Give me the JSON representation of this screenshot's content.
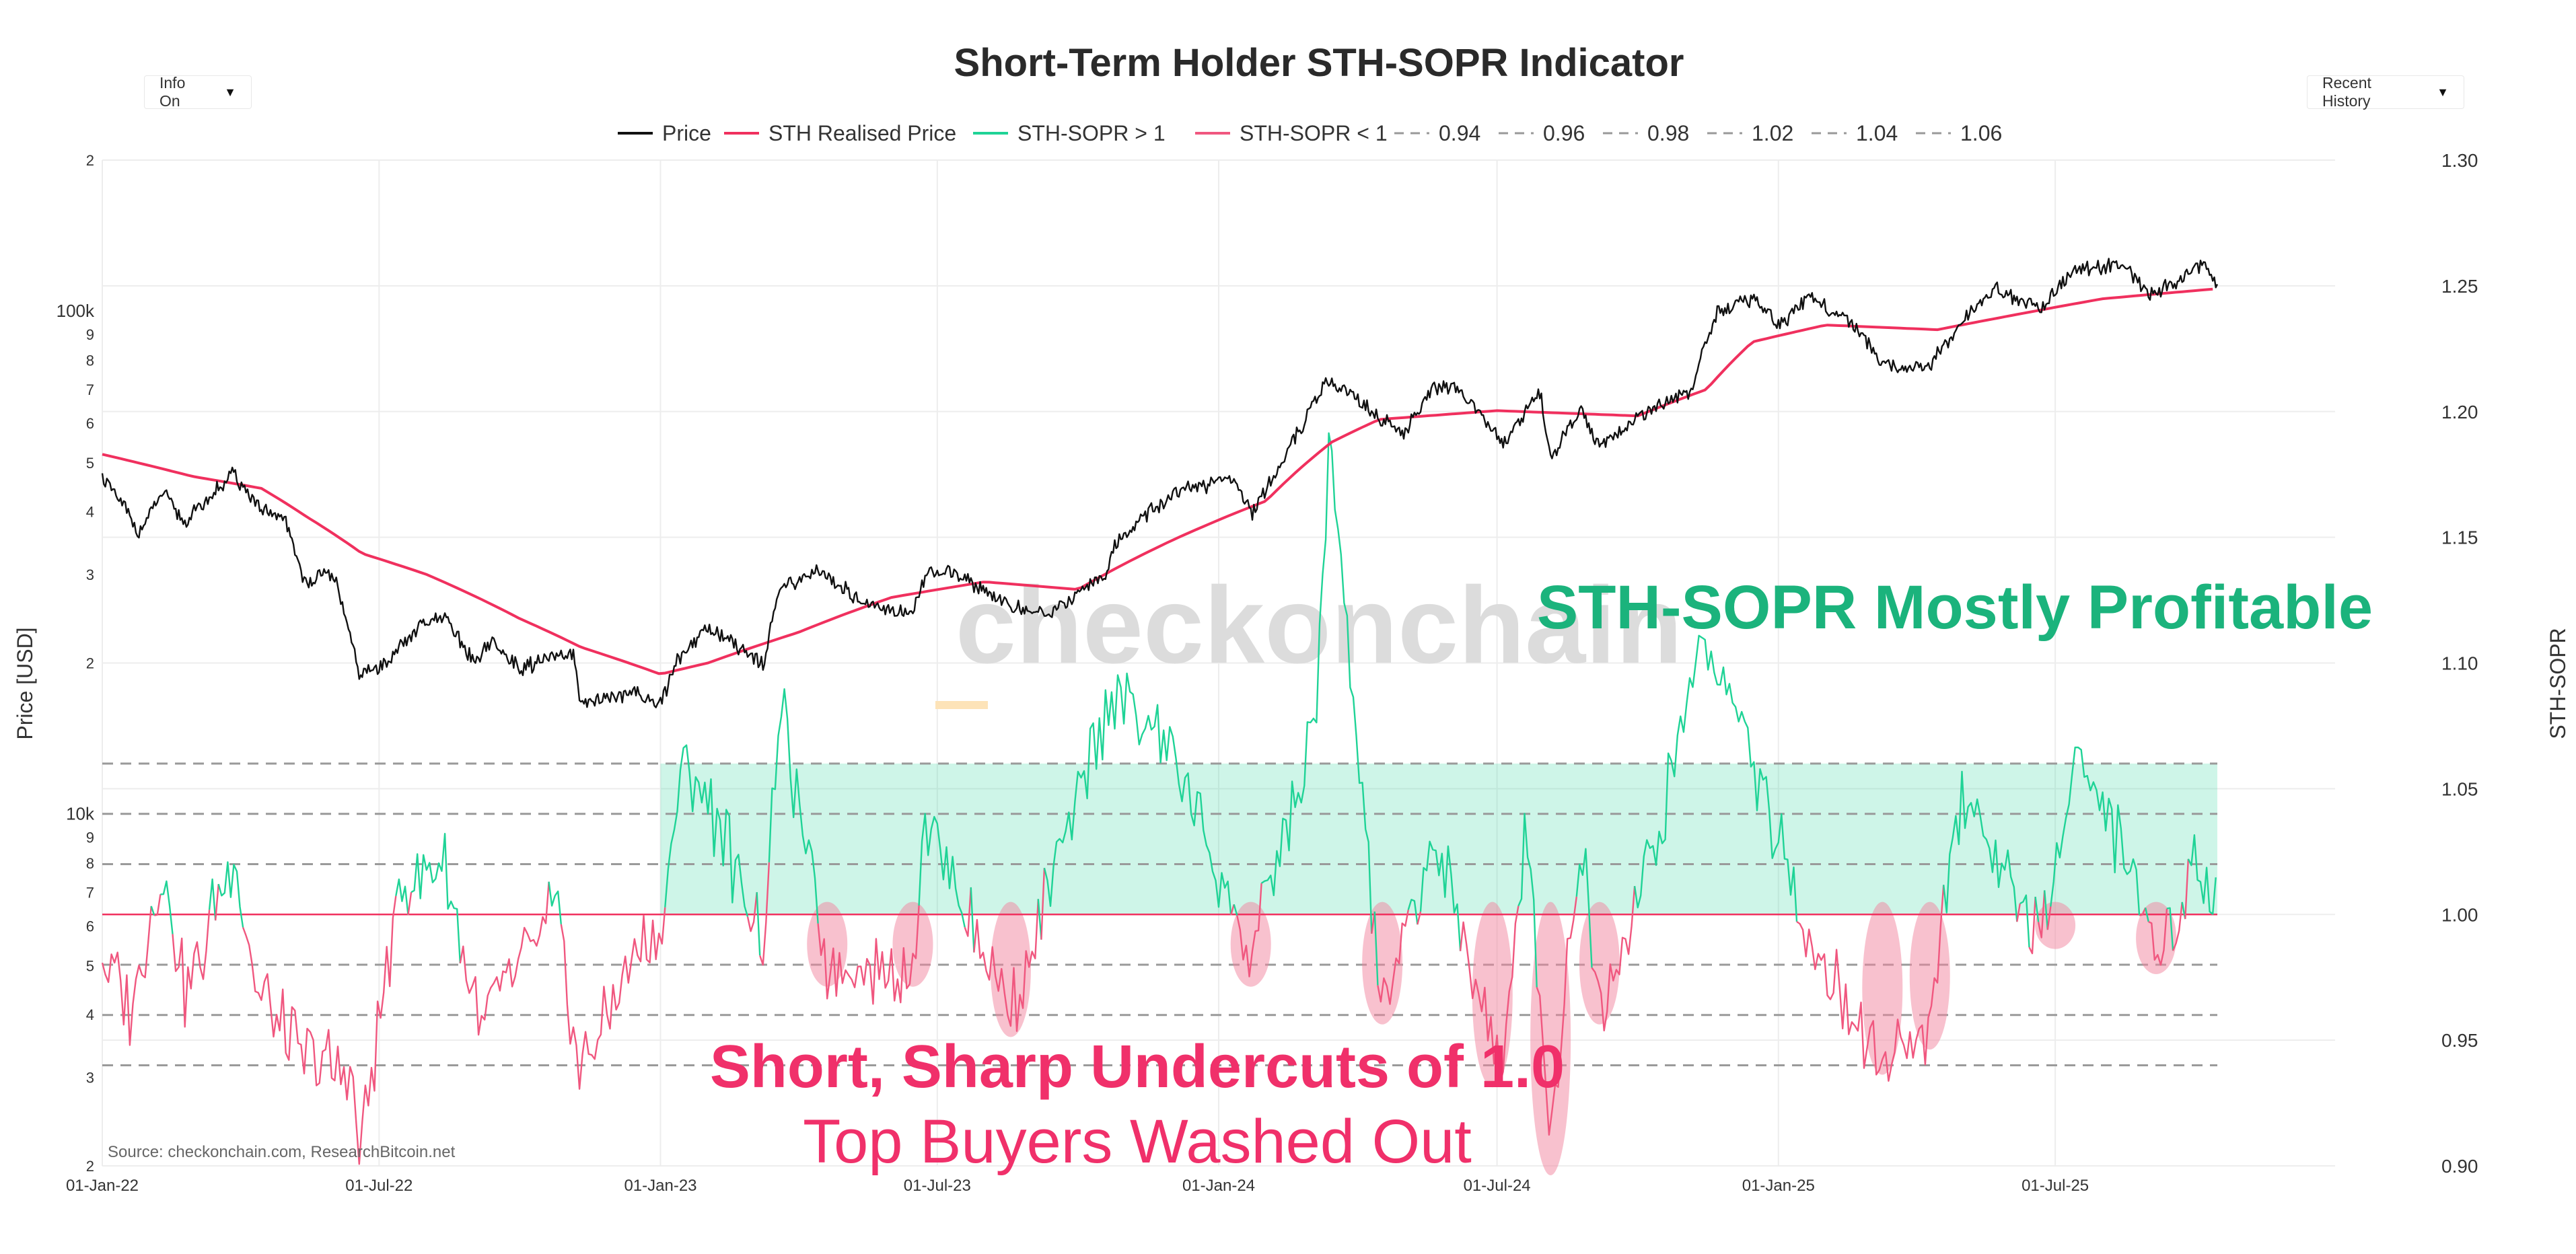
{
  "chart_data": {
    "type": "line",
    "title": "Short-Term Holder STH-SOPR Indicator",
    "controls": {
      "left_dropdown": "Info On",
      "right_dropdown": "Recent History"
    },
    "legend": [
      {
        "label": "Price",
        "color": "#111111",
        "style": "solid"
      },
      {
        "label": "STH Realised Price",
        "color": "#f0305e",
        "style": "solid"
      },
      {
        "label": "STH-SOPR > 1",
        "color": "#1fd396",
        "style": "solid"
      },
      {
        "label": "STH-SOPR < 1",
        "color": "#f0577f",
        "style": "solid"
      },
      {
        "label": "0.94",
        "color": "#999999",
        "style": "dashed"
      },
      {
        "label": "0.96",
        "color": "#999999",
        "style": "dashed"
      },
      {
        "label": "0.98",
        "color": "#999999",
        "style": "dashed"
      },
      {
        "label": "1.02",
        "color": "#999999",
        "style": "dashed"
      },
      {
        "label": "1.04",
        "color": "#999999",
        "style": "dashed"
      },
      {
        "label": "1.06",
        "color": "#999999",
        "style": "dashed"
      }
    ],
    "x_axis": {
      "ticks": [
        "01-Jan-22",
        "01-Jul-22",
        "01-Jan-23",
        "01-Jul-23",
        "01-Jan-24",
        "01-Jul-24",
        "01-Jan-25",
        "01-Jul-25"
      ],
      "range": [
        "2022-01-01",
        "2025-12-31"
      ]
    },
    "y_left": {
      "label": "Price [USD]",
      "scale": "log",
      "range": [
        2000,
        200000
      ],
      "ticks": [
        {
          "v": 2000,
          "t": "2"
        },
        {
          "v": 3000,
          "t": "3"
        },
        {
          "v": 4000,
          "t": "4"
        },
        {
          "v": 5000,
          "t": "5"
        },
        {
          "v": 6000,
          "t": "6"
        },
        {
          "v": 7000,
          "t": "7"
        },
        {
          "v": 8000,
          "t": "8"
        },
        {
          "v": 9000,
          "t": "9"
        },
        {
          "v": 10000,
          "t": "10k"
        },
        {
          "v": 20000,
          "t": "2"
        },
        {
          "v": 30000,
          "t": "3"
        },
        {
          "v": 40000,
          "t": "4"
        },
        {
          "v": 50000,
          "t": "5"
        },
        {
          "v": 60000,
          "t": "6"
        },
        {
          "v": 70000,
          "t": "7"
        },
        {
          "v": 80000,
          "t": "8"
        },
        {
          "v": 90000,
          "t": "9"
        },
        {
          "v": 100000,
          "t": "100k"
        },
        {
          "v": 200000,
          "t": "2"
        }
      ]
    },
    "y_right": {
      "label": "STH-SOPR",
      "range": [
        0.9,
        1.3
      ],
      "ticks": [
        "0.90",
        "0.95",
        "1.00",
        "1.05",
        "1.10",
        "1.15",
        "1.20",
        "1.25",
        "1.30"
      ]
    },
    "reference_lines": [
      0.94,
      0.96,
      0.98,
      1.02,
      1.04,
      1.06
    ],
    "shaded_band": {
      "from": 1.0,
      "to": 1.06,
      "start": "2023-01-01",
      "end": "2025-10-15",
      "color": "#1fd396"
    },
    "price_series": [
      {
        "d": "2022-01-01",
        "v": 47000
      },
      {
        "d": "2022-01-25",
        "v": 36500
      },
      {
        "d": "2022-02-10",
        "v": 43500
      },
      {
        "d": "2022-02-24",
        "v": 38000
      },
      {
        "d": "2022-03-28",
        "v": 47500
      },
      {
        "d": "2022-04-15",
        "v": 40000
      },
      {
        "d": "2022-05-01",
        "v": 38500
      },
      {
        "d": "2022-05-12",
        "v": 29000
      },
      {
        "d": "2022-06-01",
        "v": 30000
      },
      {
        "d": "2022-06-13",
        "v": 22000
      },
      {
        "d": "2022-06-18",
        "v": 19000
      },
      {
        "d": "2022-07-01",
        "v": 19500
      },
      {
        "d": "2022-07-30",
        "v": 24000
      },
      {
        "d": "2022-08-14",
        "v": 24400
      },
      {
        "d": "2022-09-01",
        "v": 20000
      },
      {
        "d": "2022-09-12",
        "v": 22000
      },
      {
        "d": "2022-10-01",
        "v": 19500
      },
      {
        "d": "2022-11-05",
        "v": 21000
      },
      {
        "d": "2022-11-09",
        "v": 16500
      },
      {
        "d": "2022-12-15",
        "v": 17500
      },
      {
        "d": "2023-01-01",
        "v": 16600
      },
      {
        "d": "2023-01-15",
        "v": 21000
      },
      {
        "d": "2023-02-01",
        "v": 23500
      },
      {
        "d": "2023-03-10",
        "v": 20000
      },
      {
        "d": "2023-03-20",
        "v": 28000
      },
      {
        "d": "2023-04-14",
        "v": 30500
      },
      {
        "d": "2023-05-12",
        "v": 26500
      },
      {
        "d": "2023-06-15",
        "v": 25000
      },
      {
        "d": "2023-06-25",
        "v": 30500
      },
      {
        "d": "2023-07-15",
        "v": 30000
      },
      {
        "d": "2023-08-17",
        "v": 26000
      },
      {
        "d": "2023-09-11",
        "v": 25000
      },
      {
        "d": "2023-10-20",
        "v": 30000
      },
      {
        "d": "2023-10-25",
        "v": 34500
      },
      {
        "d": "2023-12-05",
        "v": 44000
      },
      {
        "d": "2024-01-11",
        "v": 46500
      },
      {
        "d": "2024-01-23",
        "v": 39500
      },
      {
        "d": "2024-02-15",
        "v": 52000
      },
      {
        "d": "2024-03-13",
        "v": 73000
      },
      {
        "d": "2024-04-17",
        "v": 61000
      },
      {
        "d": "2024-05-01",
        "v": 57000
      },
      {
        "d": "2024-05-21",
        "v": 71000
      },
      {
        "d": "2024-06-07",
        "v": 70000
      },
      {
        "d": "2024-07-05",
        "v": 54000
      },
      {
        "d": "2024-07-29",
        "v": 69000
      },
      {
        "d": "2024-08-05",
        "v": 51000
      },
      {
        "d": "2024-08-25",
        "v": 64000
      },
      {
        "d": "2024-09-06",
        "v": 53500
      },
      {
        "d": "2024-10-15",
        "v": 66000
      },
      {
        "d": "2024-11-05",
        "v": 69000
      },
      {
        "d": "2024-11-22",
        "v": 99000
      },
      {
        "d": "2024-12-17",
        "v": 106000
      },
      {
        "d": "2025-01-02",
        "v": 94000
      },
      {
        "d": "2025-01-20",
        "v": 106000
      },
      {
        "d": "2025-02-15",
        "v": 97000
      },
      {
        "d": "2025-03-10",
        "v": 79000
      },
      {
        "d": "2025-04-08",
        "v": 76500
      },
      {
        "d": "2025-05-01",
        "v": 95000
      },
      {
        "d": "2025-05-22",
        "v": 111000
      },
      {
        "d": "2025-06-22",
        "v": 101000
      },
      {
        "d": "2025-07-14",
        "v": 122000
      },
      {
        "d": "2025-08-14",
        "v": 123500
      },
      {
        "d": "2025-09-01",
        "v": 108000
      },
      {
        "d": "2025-09-20",
        "v": 116000
      },
      {
        "d": "2025-10-06",
        "v": 125000
      },
      {
        "d": "2025-10-15",
        "v": 113000
      }
    ],
    "realised_price_series": [
      {
        "d": "2022-01-01",
        "v": 52000
      },
      {
        "d": "2022-03-01",
        "v": 47000
      },
      {
        "d": "2022-04-15",
        "v": 44500
      },
      {
        "d": "2022-05-15",
        "v": 39000
      },
      {
        "d": "2022-06-20",
        "v": 33000
      },
      {
        "d": "2022-08-01",
        "v": 30000
      },
      {
        "d": "2022-10-01",
        "v": 24500
      },
      {
        "d": "2022-11-10",
        "v": 21500
      },
      {
        "d": "2023-01-01",
        "v": 19000
      },
      {
        "d": "2023-02-01",
        "v": 20000
      },
      {
        "d": "2023-04-01",
        "v": 23000
      },
      {
        "d": "2023-06-01",
        "v": 27000
      },
      {
        "d": "2023-08-01",
        "v": 29000
      },
      {
        "d": "2023-10-01",
        "v": 28000
      },
      {
        "d": "2023-12-01",
        "v": 35000
      },
      {
        "d": "2024-02-01",
        "v": 42000
      },
      {
        "d": "2024-03-15",
        "v": 55000
      },
      {
        "d": "2024-04-15",
        "v": 61000
      },
      {
        "d": "2024-07-01",
        "v": 63500
      },
      {
        "d": "2024-10-01",
        "v": 62000
      },
      {
        "d": "2024-11-15",
        "v": 70000
      },
      {
        "d": "2024-12-15",
        "v": 87000
      },
      {
        "d": "2025-02-01",
        "v": 94000
      },
      {
        "d": "2025-04-15",
        "v": 92000
      },
      {
        "d": "2025-06-01",
        "v": 98000
      },
      {
        "d": "2025-08-01",
        "v": 106000
      },
      {
        "d": "2025-10-15",
        "v": 111000
      }
    ],
    "sopr_series": [
      {
        "d": "2022-01-01",
        "v": 0.983
      },
      {
        "d": "2022-01-20",
        "v": 0.962
      },
      {
        "d": "2022-02-08",
        "v": 1.018
      },
      {
        "d": "2022-02-25",
        "v": 0.968
      },
      {
        "d": "2022-03-28",
        "v": 1.025
      },
      {
        "d": "2022-04-12",
        "v": 0.972
      },
      {
        "d": "2022-05-10",
        "v": 0.945
      },
      {
        "d": "2022-06-13",
        "v": 0.935
      },
      {
        "d": "2022-06-18",
        "v": 0.905
      },
      {
        "d": "2022-07-15",
        "v": 1.012
      },
      {
        "d": "2022-08-14",
        "v": 1.018
      },
      {
        "d": "2022-09-06",
        "v": 0.955
      },
      {
        "d": "2022-10-25",
        "v": 1.004
      },
      {
        "d": "2022-11-09",
        "v": 0.935
      },
      {
        "d": "2022-12-15",
        "v": 0.985
      },
      {
        "d": "2023-01-01",
        "v": 0.99
      },
      {
        "d": "2023-01-15",
        "v": 1.062
      },
      {
        "d": "2023-02-01",
        "v": 1.045
      },
      {
        "d": "2023-03-10",
        "v": 0.99
      },
      {
        "d": "2023-03-20",
        "v": 1.082
      },
      {
        "d": "2023-04-20",
        "v": 0.98
      },
      {
        "d": "2023-06-15",
        "v": 0.978
      },
      {
        "d": "2023-06-22",
        "v": 1.04
      },
      {
        "d": "2023-08-18",
        "v": 0.96
      },
      {
        "d": "2023-10-24",
        "v": 1.09
      },
      {
        "d": "2023-12-05",
        "v": 1.06
      },
      {
        "d": "2024-01-22",
        "v": 0.982
      },
      {
        "d": "2024-03-05",
        "v": 1.08
      },
      {
        "d": "2024-03-13",
        "v": 1.19
      },
      {
        "d": "2024-04-17",
        "v": 0.96
      },
      {
        "d": "2024-05-20",
        "v": 1.03
      },
      {
        "d": "2024-06-24",
        "v": 0.96
      },
      {
        "d": "2024-07-05",
        "v": 0.935
      },
      {
        "d": "2024-07-20",
        "v": 1.04
      },
      {
        "d": "2024-08-05",
        "v": 0.908
      },
      {
        "d": "2024-08-24",
        "v": 1.03
      },
      {
        "d": "2024-09-06",
        "v": 0.965
      },
      {
        "d": "2024-10-15",
        "v": 1.03
      },
      {
        "d": "2024-11-12",
        "v": 1.11
      },
      {
        "d": "2024-12-05",
        "v": 1.08
      },
      {
        "d": "2025-01-10",
        "v": 1.01
      },
      {
        "d": "2025-02-03",
        "v": 0.975
      },
      {
        "d": "2025-03-10",
        "v": 0.94
      },
      {
        "d": "2025-04-08",
        "v": 0.952
      },
      {
        "d": "2025-05-01",
        "v": 1.05
      },
      {
        "d": "2025-06-22",
        "v": 0.988
      },
      {
        "d": "2025-07-14",
        "v": 1.065
      },
      {
        "d": "2025-08-20",
        "v": 1.02
      },
      {
        "d": "2025-09-05",
        "v": 0.982
      },
      {
        "d": "2025-09-28",
        "v": 1.02
      },
      {
        "d": "2025-10-15",
        "v": 1.01
      }
    ],
    "highlighted_dips": [
      {
        "d": "2023-04-20",
        "low": 0.975
      },
      {
        "d": "2023-06-15",
        "low": 0.975
      },
      {
        "d": "2023-08-18",
        "low": 0.955
      },
      {
        "d": "2024-01-22",
        "low": 0.975
      },
      {
        "d": "2024-04-17",
        "low": 0.96
      },
      {
        "d": "2024-06-28",
        "low": 0.935
      },
      {
        "d": "2024-08-05",
        "low": 0.9
      },
      {
        "d": "2024-09-06",
        "low": 0.96
      },
      {
        "d": "2025-03-10",
        "low": 0.94
      },
      {
        "d": "2025-04-10",
        "low": 0.95
      },
      {
        "d": "2025-07-01",
        "low": 0.99
      },
      {
        "d": "2025-09-05",
        "low": 0.98
      }
    ],
    "annotations": {
      "profitable": "STH-SOPR Mostly Profitable",
      "undercuts": "Short, Sharp Undercuts of 1.0",
      "washed": "Top Buyers Washed Out",
      "source": "Source: checkonchain.com, ResearchBitcoin.net",
      "watermark": "checkonchain"
    },
    "colors": {
      "price": "#111111",
      "realised": "#f0305e",
      "sopr_up": "#1fd396",
      "sopr_down": "#f0577f",
      "profit_text": "#1bb37c",
      "undercut_text": "#f0306a",
      "band": "#1fd396",
      "dip": "#f2849e",
      "watermark": "#dcdcdc",
      "watermark_accent": "#fde3b8"
    }
  }
}
